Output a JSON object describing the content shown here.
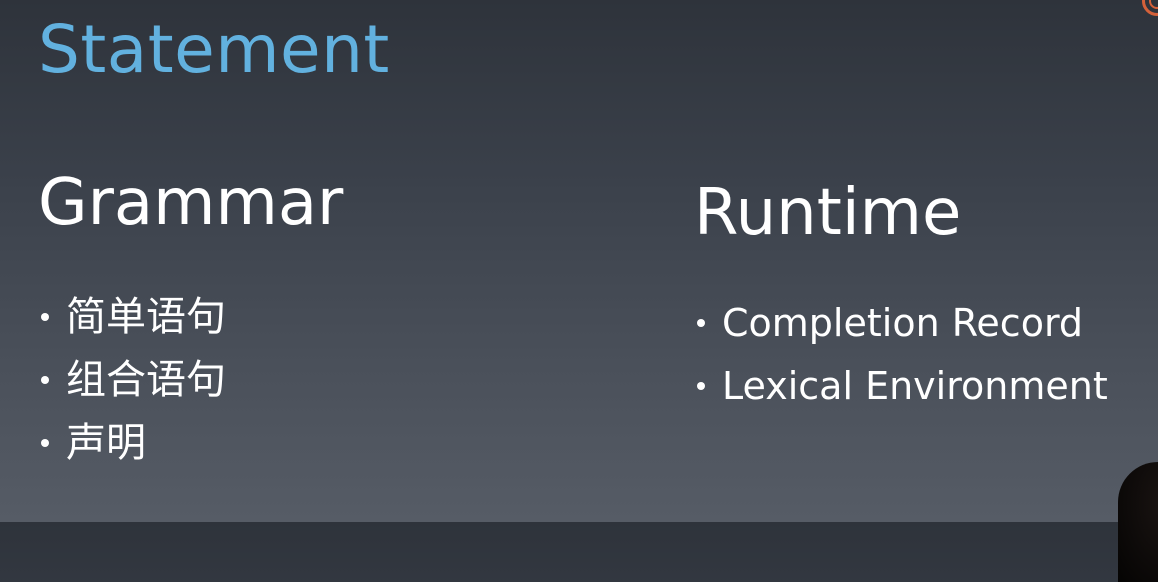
{
  "slide": {
    "title": "Statement",
    "columns": [
      {
        "heading": "Grammar",
        "items": [
          "简单语句",
          "组合语句",
          "声明"
        ]
      },
      {
        "heading": "Runtime",
        "items": [
          "Completion Record",
          "Lexical Environment"
        ]
      }
    ]
  },
  "colors": {
    "title": "#62b1df",
    "text": "#ffffff",
    "background_top": "#2e333b",
    "background_bottom": "#565c66",
    "logo_accent": "#d4613a"
  }
}
